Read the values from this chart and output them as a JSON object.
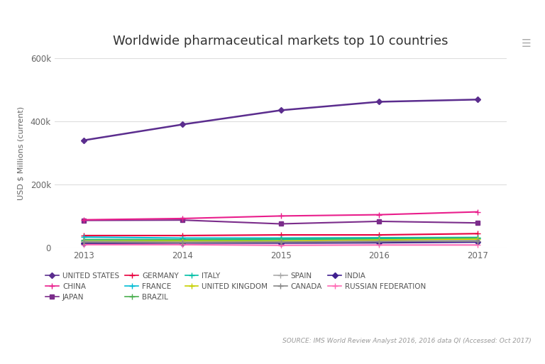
{
  "title": "Worldwide pharmaceutical markets top 10 countries",
  "ylabel": "USD $ Millions (current)",
  "source": "SOURCE: IMS World Review Analyst 2016, 2016 data QI (Accessed: Oct 2017)",
  "years": [
    2013,
    2014,
    2015,
    2016,
    2017
  ],
  "series": [
    {
      "name": "UNITED STATES",
      "color": "#5b2d8e",
      "values": [
        340000,
        390000,
        435000,
        462000,
        469000
      ],
      "marker": "D",
      "markersize": 4,
      "linewidth": 1.8,
      "zorder": 10
    },
    {
      "name": "CHINA",
      "color": "#e91e8c",
      "values": [
        88000,
        92000,
        100000,
        104000,
        113000
      ],
      "marker": "+",
      "markersize": 6,
      "linewidth": 1.5,
      "zorder": 9
    },
    {
      "name": "JAPAN",
      "color": "#7b2d8b",
      "values": [
        86000,
        87000,
        75000,
        83000,
        78000
      ],
      "marker": "s",
      "markersize": 4,
      "linewidth": 1.5,
      "zorder": 8
    },
    {
      "name": "GERMANY",
      "color": "#e8003d",
      "values": [
        38000,
        38000,
        40000,
        40000,
        44000
      ],
      "marker": "+",
      "markersize": 6,
      "linewidth": 1.5,
      "zorder": 7
    },
    {
      "name": "FRANCE",
      "color": "#00bcd4",
      "values": [
        33000,
        30000,
        30000,
        31000,
        32000
      ],
      "marker": "+",
      "markersize": 6,
      "linewidth": 1.5,
      "zorder": 7
    },
    {
      "name": "BRAZIL",
      "color": "#4caf50",
      "values": [
        25000,
        25000,
        27000,
        29000,
        31000
      ],
      "marker": "+",
      "markersize": 6,
      "linewidth": 1.5,
      "zorder": 7
    },
    {
      "name": "ITALY",
      "color": "#00bfa5",
      "values": [
        23000,
        23000,
        25000,
        27000,
        29000
      ],
      "marker": "+",
      "markersize": 6,
      "linewidth": 1.5,
      "zorder": 7
    },
    {
      "name": "UNITED KINGDOM",
      "color": "#c6d000",
      "values": [
        21000,
        21000,
        21000,
        24000,
        27000
      ],
      "marker": "+",
      "markersize": 6,
      "linewidth": 1.5,
      "zorder": 7
    },
    {
      "name": "SPAIN",
      "color": "#aaaaaa",
      "values": [
        19000,
        17000,
        18000,
        20000,
        21000
      ],
      "marker": "+",
      "markersize": 6,
      "linewidth": 1.5,
      "zorder": 7
    },
    {
      "name": "CANADA",
      "color": "#888888",
      "values": [
        17000,
        16000,
        17000,
        19000,
        21000
      ],
      "marker": "+",
      "markersize": 6,
      "linewidth": 1.5,
      "zorder": 7
    },
    {
      "name": "INDIA",
      "color": "#3f1f8f",
      "values": [
        13000,
        14000,
        14000,
        15000,
        17000
      ],
      "marker": "D",
      "markersize": 4,
      "linewidth": 1.5,
      "zorder": 6
    },
    {
      "name": "RUSSIAN FEDERATION",
      "color": "#ff69b4",
      "values": [
        9000,
        9000,
        7000,
        8000,
        8000
      ],
      "marker": "+",
      "markersize": 6,
      "linewidth": 1.5,
      "zorder": 6
    }
  ],
  "legend_order": [
    "UNITED STATES",
    "CHINA",
    "JAPAN",
    "GERMANY",
    "FRANCE",
    "BRAZIL",
    "ITALY",
    "UNITED KINGDOM",
    "SPAIN",
    "CANADA",
    "INDIA",
    "RUSSIAN FEDERATION"
  ],
  "ylim": [
    0,
    600000
  ],
  "yticks": [
    0,
    200000,
    400000,
    600000
  ],
  "ytick_labels": [
    "0",
    "200k",
    "400k",
    "600k"
  ],
  "background_color": "#ffffff",
  "grid_color": "#dddddd",
  "title_fontsize": 13,
  "axis_label_fontsize": 8,
  "tick_fontsize": 8.5,
  "legend_fontsize": 7.5,
  "source_fontsize": 6.5
}
